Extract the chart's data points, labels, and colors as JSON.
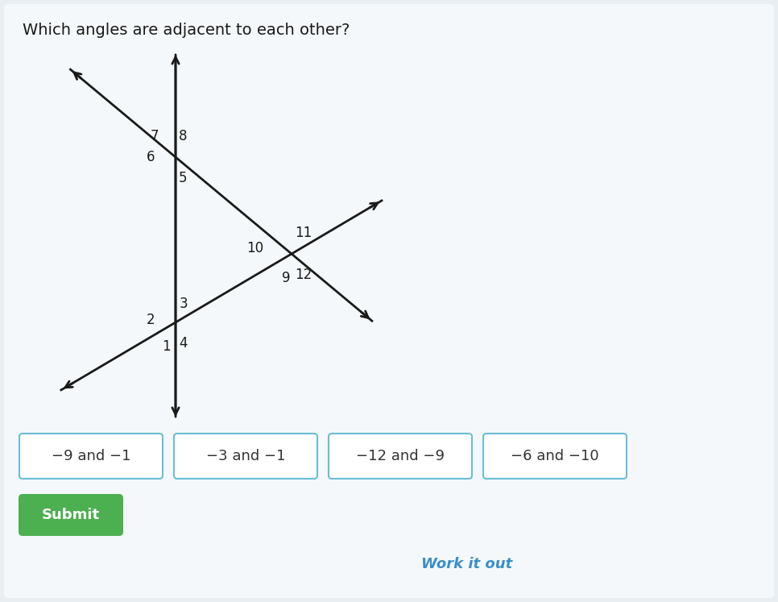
{
  "title": "Which angles are adjacent to each other?",
  "title_fontsize": 14,
  "title_color": "#1a1a1a",
  "bg_color": "#e8eef2",
  "answer_options": [
    "−9 and −1",
    "−3 and −1",
    "−12 and −9",
    "−6 and −10"
  ],
  "button_border_color": "#6bbdd4",
  "button_text_color": "#333333",
  "submit_bg": "#4caf50",
  "submit_text": "Submit",
  "submit_text_color": "#ffffff",
  "work_it_out_text": "Work it out",
  "work_it_out_color": "#3a8fc8",
  "line_color": "#1a1a1a",
  "label_color": "#1a1a1a",
  "label_fontsize": 12,
  "vi1": [
    0.27,
    0.72
  ],
  "vi2": [
    0.27,
    0.42
  ],
  "xi3": [
    0.47,
    0.55
  ]
}
